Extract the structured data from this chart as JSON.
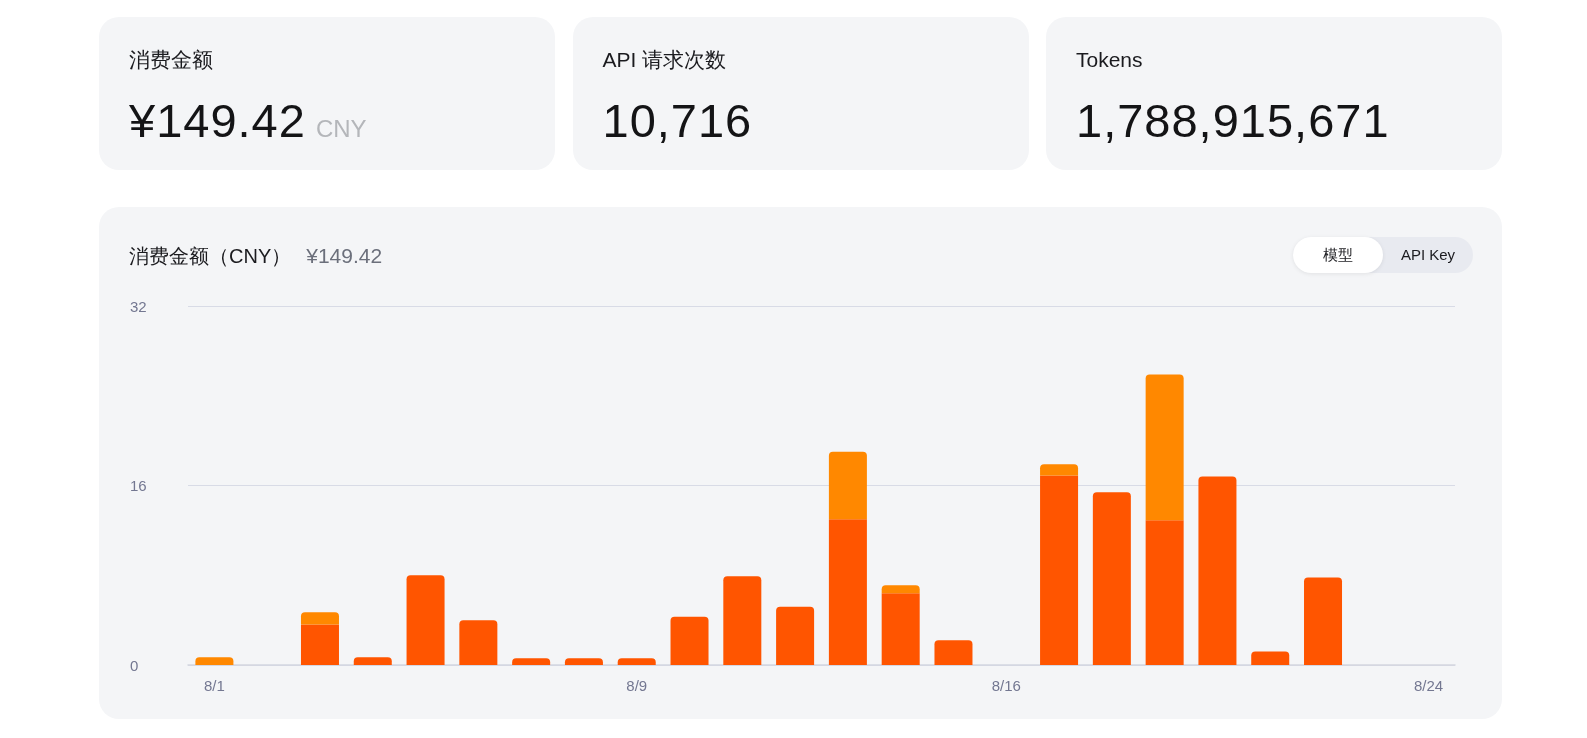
{
  "chart_data": [
    {
      "type": "other",
      "title": "消费金额",
      "annotations": [
        "¥149.42",
        "CNY"
      ]
    },
    {
      "type": "other",
      "title": "API 请求次数",
      "annotations": [
        "10,716"
      ]
    },
    {
      "type": "other",
      "title": "Tokens",
      "annotations": [
        "1,788,915,671"
      ]
    },
    {
      "type": "bar",
      "title": "消费金额（CNY）",
      "subtitle": "¥149.42",
      "annotations": [
        "模型",
        "API Key"
      ],
      "categories": [
        "8/1",
        null,
        null,
        null,
        null,
        null,
        null,
        null,
        "8/9",
        null,
        null,
        null,
        null,
        null,
        null,
        "8/16",
        null,
        null,
        null,
        null,
        null,
        null,
        null,
        "8/24"
      ],
      "series": [
        {
          "color": "#ff5500",
          "values": [
            0,
            0,
            3.6,
            0.7,
            8.0,
            4.0,
            0.6,
            0.6,
            0.6,
            4.3,
            7.9,
            5.2,
            13.0,
            6.4,
            2.2,
            0,
            16.9,
            15.4,
            12.9,
            16.8,
            1.2,
            7.8,
            0,
            0
          ]
        },
        {
          "color": "#ff8800",
          "values": [
            0.7,
            0,
            1.1,
            0,
            0,
            0,
            0,
            0,
            0,
            0,
            0,
            0,
            6.0,
            0.7,
            0,
            0,
            1.0,
            0,
            13.0,
            0,
            0,
            0,
            0,
            0
          ]
        }
      ],
      "stacked": true,
      "ylim": [
        0,
        32
      ],
      "yticks": [
        0,
        16,
        32
      ],
      "grid": "y"
    }
  ]
}
